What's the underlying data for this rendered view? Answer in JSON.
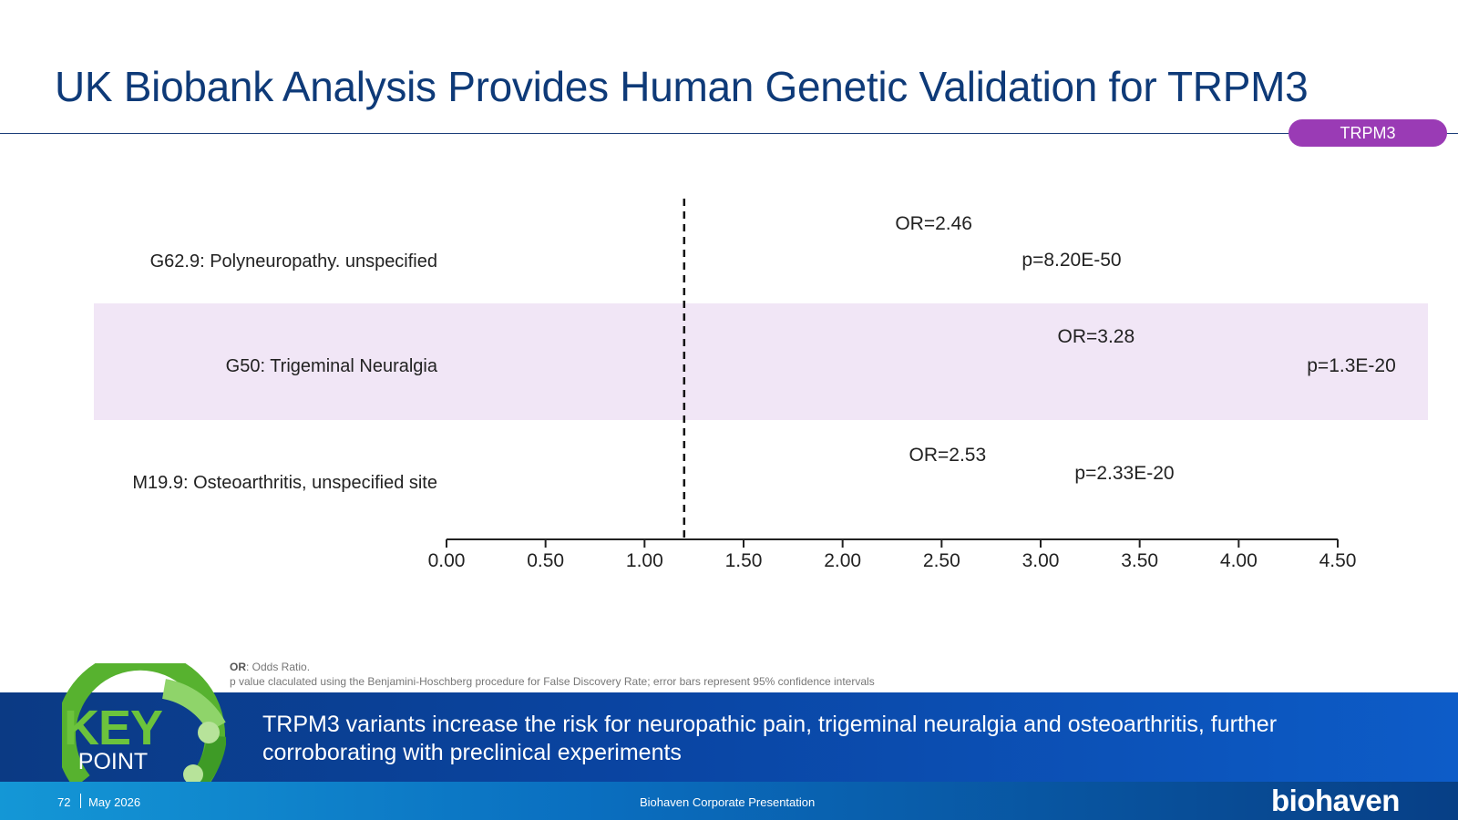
{
  "slide": {
    "title": "UK Biobank Analysis Provides Human Genetic Validation for TRPM3",
    "tag": "TRPM3"
  },
  "chart_data": {
    "type": "forest",
    "categories": [
      "G62.9: Polyneuropathy. unspecified",
      "G50: Trigeminal Neuralgia",
      "M19.9: Osteoarthritis, unspecified site"
    ],
    "odds_ratio_labels": [
      "OR=2.46",
      "OR=3.28",
      "OR=2.53"
    ],
    "p_value_labels": [
      "p=8.20E-50",
      "p=1.3E-20",
      "p=2.33E-20"
    ],
    "values": [
      2.46,
      3.28,
      2.53
    ],
    "reference_line": 1.2,
    "xlim": [
      0,
      4.5
    ],
    "xticks": [
      "0.00",
      "0.50",
      "1.00",
      "1.50",
      "2.00",
      "2.50",
      "3.00",
      "3.50",
      "4.00",
      "4.50"
    ],
    "highlight_row": 1,
    "colors": {
      "highlight": "#f1e6f6",
      "axis": "#222222",
      "text": "#222222"
    }
  },
  "footnote": {
    "abbrev": "OR",
    "abbrev_text": ": Odds Ratio.",
    "line2": "p value claculated using the Benjamini-Hoschberg procedure for False Discovery Rate; error bars represent 95% confidence intervals"
  },
  "key_point": {
    "word": "KEY",
    "sub": "POINT",
    "text": "TRPM3 variants increase the risk for neuropathic pain, trigeminal neuralgia and osteoarthritis, further corroborating with preclinical experiments"
  },
  "footer": {
    "page": "72",
    "date": "May 2026",
    "center": "Biohaven Corporate Presentation",
    "logo": "biohaven"
  },
  "colors": {
    "title": "#0e3a78",
    "tag": "#9a3bb5",
    "key_green": "#6cc33c",
    "band_blue": "#0a45a3"
  }
}
